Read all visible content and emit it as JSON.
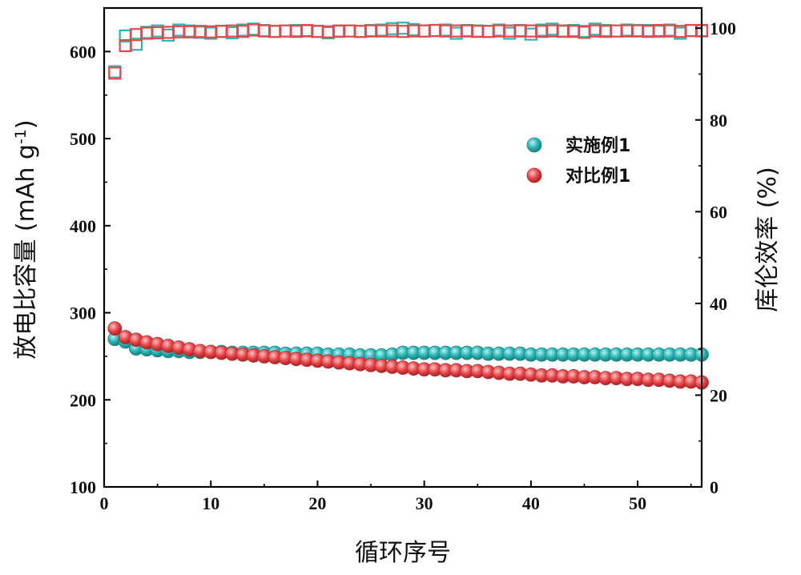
{
  "chart_data": {
    "type": "scatter",
    "title": "",
    "xlabel": "循环序号",
    "ylabel_left_main": "放电比容量 (mAh g",
    "ylabel_left_sup": "-1",
    "ylabel_left_close": ")",
    "ylabel_right": "库伦效率 (%)",
    "xlim": [
      0,
      56
    ],
    "ylim_left": [
      100,
      650
    ],
    "ylim_right": [
      0,
      104.4
    ],
    "x_ticks": [
      0,
      10,
      20,
      30,
      40,
      50
    ],
    "y_left_ticks": [
      100,
      200,
      300,
      400,
      500,
      600
    ],
    "y_right_ticks": [
      0,
      20,
      40,
      60,
      80,
      100
    ],
    "legend_position": "center-right",
    "series": [
      {
        "name": "实施例1",
        "axis": "left",
        "kind": "capacity",
        "marker": "filled-circle",
        "color": "#2ab5b5",
        "x": [
          1,
          2,
          3,
          4,
          5,
          6,
          7,
          8,
          9,
          10,
          11,
          12,
          13,
          14,
          15,
          16,
          17,
          18,
          19,
          20,
          21,
          22,
          23,
          24,
          25,
          26,
          27,
          28,
          29,
          30,
          31,
          32,
          33,
          34,
          35,
          36,
          37,
          38,
          39,
          40,
          41,
          42,
          43,
          44,
          45,
          46,
          47,
          48,
          49,
          50,
          51,
          52,
          53,
          54,
          55,
          56
        ],
        "y": [
          270,
          267,
          259,
          258,
          257,
          256,
          256,
          255,
          255,
          255,
          255,
          254,
          254,
          254,
          254,
          254,
          253,
          253,
          253,
          253,
          252,
          252,
          252,
          251,
          251,
          251,
          252,
          254,
          254,
          254,
          254,
          254,
          254,
          254,
          254,
          253,
          253,
          253,
          253,
          252,
          252,
          252,
          252,
          252,
          252,
          252,
          252,
          252,
          252,
          252,
          252,
          252,
          252,
          252,
          252,
          252
        ]
      },
      {
        "name": "对比例1",
        "axis": "left",
        "kind": "capacity",
        "marker": "filled-circle",
        "color": "#e8474a",
        "x": [
          1,
          2,
          3,
          4,
          5,
          6,
          7,
          8,
          9,
          10,
          11,
          12,
          13,
          14,
          15,
          16,
          17,
          18,
          19,
          20,
          21,
          22,
          23,
          24,
          25,
          26,
          27,
          28,
          29,
          30,
          31,
          32,
          33,
          34,
          35,
          36,
          37,
          38,
          39,
          40,
          41,
          42,
          43,
          44,
          45,
          46,
          47,
          48,
          49,
          50,
          51,
          52,
          53,
          54,
          55,
          56
        ],
        "y": [
          282,
          272,
          269,
          266,
          264,
          262,
          260,
          258,
          256,
          255,
          254,
          253,
          252,
          251,
          250,
          249,
          248,
          247,
          246,
          245,
          244,
          243,
          242,
          241,
          240,
          239,
          238,
          237,
          236,
          235,
          235,
          234,
          234,
          233,
          233,
          232,
          231,
          230,
          230,
          229,
          228,
          228,
          227,
          227,
          226,
          226,
          225,
          225,
          224,
          224,
          223,
          223,
          222,
          221,
          221,
          220
        ]
      },
      {
        "name": "",
        "axis": "right",
        "kind": "efficiency",
        "marker": "open-square",
        "color": "#2ab5b5",
        "x": [
          1,
          2,
          3,
          4,
          5,
          6,
          7,
          8,
          9,
          10,
          11,
          12,
          13,
          14,
          15,
          16,
          17,
          18,
          19,
          20,
          21,
          22,
          23,
          24,
          25,
          26,
          27,
          28,
          29,
          30,
          31,
          32,
          33,
          34,
          35,
          36,
          37,
          38,
          39,
          40,
          41,
          42,
          43,
          44,
          45,
          46,
          47,
          48,
          49,
          50,
          51,
          52,
          53,
          54,
          55,
          56
        ],
        "y": [
          90.5,
          98.3,
          96.5,
          99.1,
          99.4,
          98.5,
          99.6,
          99.4,
          99.1,
          98.9,
          99.3,
          99.0,
          99.6,
          99.8,
          99.5,
          99.3,
          99.4,
          99.5,
          99.4,
          99.3,
          99.0,
          99.3,
          99.4,
          99.3,
          99.5,
          99.6,
          99.9,
          100.0,
          99.7,
          99.4,
          99.5,
          99.6,
          98.9,
          99.5,
          99.4,
          99.3,
          99.6,
          98.9,
          99.5,
          98.7,
          99.6,
          99.8,
          99.3,
          99.5,
          99.3,
          99.8,
          99.5,
          99.4,
          99.6,
          99.5,
          99.5,
          99.3,
          99.6,
          98.9,
          99.5,
          99.4
        ]
      },
      {
        "name": "",
        "axis": "right",
        "kind": "efficiency",
        "marker": "open-square",
        "color": "#e8474a",
        "x": [
          1,
          2,
          3,
          4,
          5,
          6,
          7,
          8,
          9,
          10,
          11,
          12,
          13,
          14,
          15,
          16,
          17,
          18,
          19,
          20,
          21,
          22,
          23,
          24,
          25,
          26,
          27,
          28,
          29,
          30,
          31,
          32,
          33,
          34,
          35,
          36,
          37,
          38,
          39,
          40,
          41,
          42,
          43,
          44,
          45,
          46,
          47,
          48,
          49,
          50,
          51,
          52,
          53,
          54,
          55,
          56
        ],
        "y": [
          90.2,
          96.2,
          98.6,
          98.9,
          99.0,
          99.1,
          99.2,
          99.2,
          99.3,
          99.2,
          99.3,
          99.4,
          99.3,
          99.6,
          99.4,
          99.3,
          99.4,
          99.3,
          99.5,
          99.3,
          99.2,
          99.4,
          99.4,
          99.3,
          99.4,
          99.4,
          99.4,
          99.3,
          99.4,
          99.4,
          99.5,
          99.4,
          99.4,
          99.4,
          99.3,
          99.3,
          99.4,
          99.4,
          99.4,
          99.4,
          99.3,
          99.4,
          99.4,
          99.3,
          99.1,
          99.4,
          99.3,
          99.4,
          99.4,
          99.4,
          99.3,
          99.5,
          99.4,
          99.3,
          99.5,
          99.5
        ]
      }
    ]
  }
}
